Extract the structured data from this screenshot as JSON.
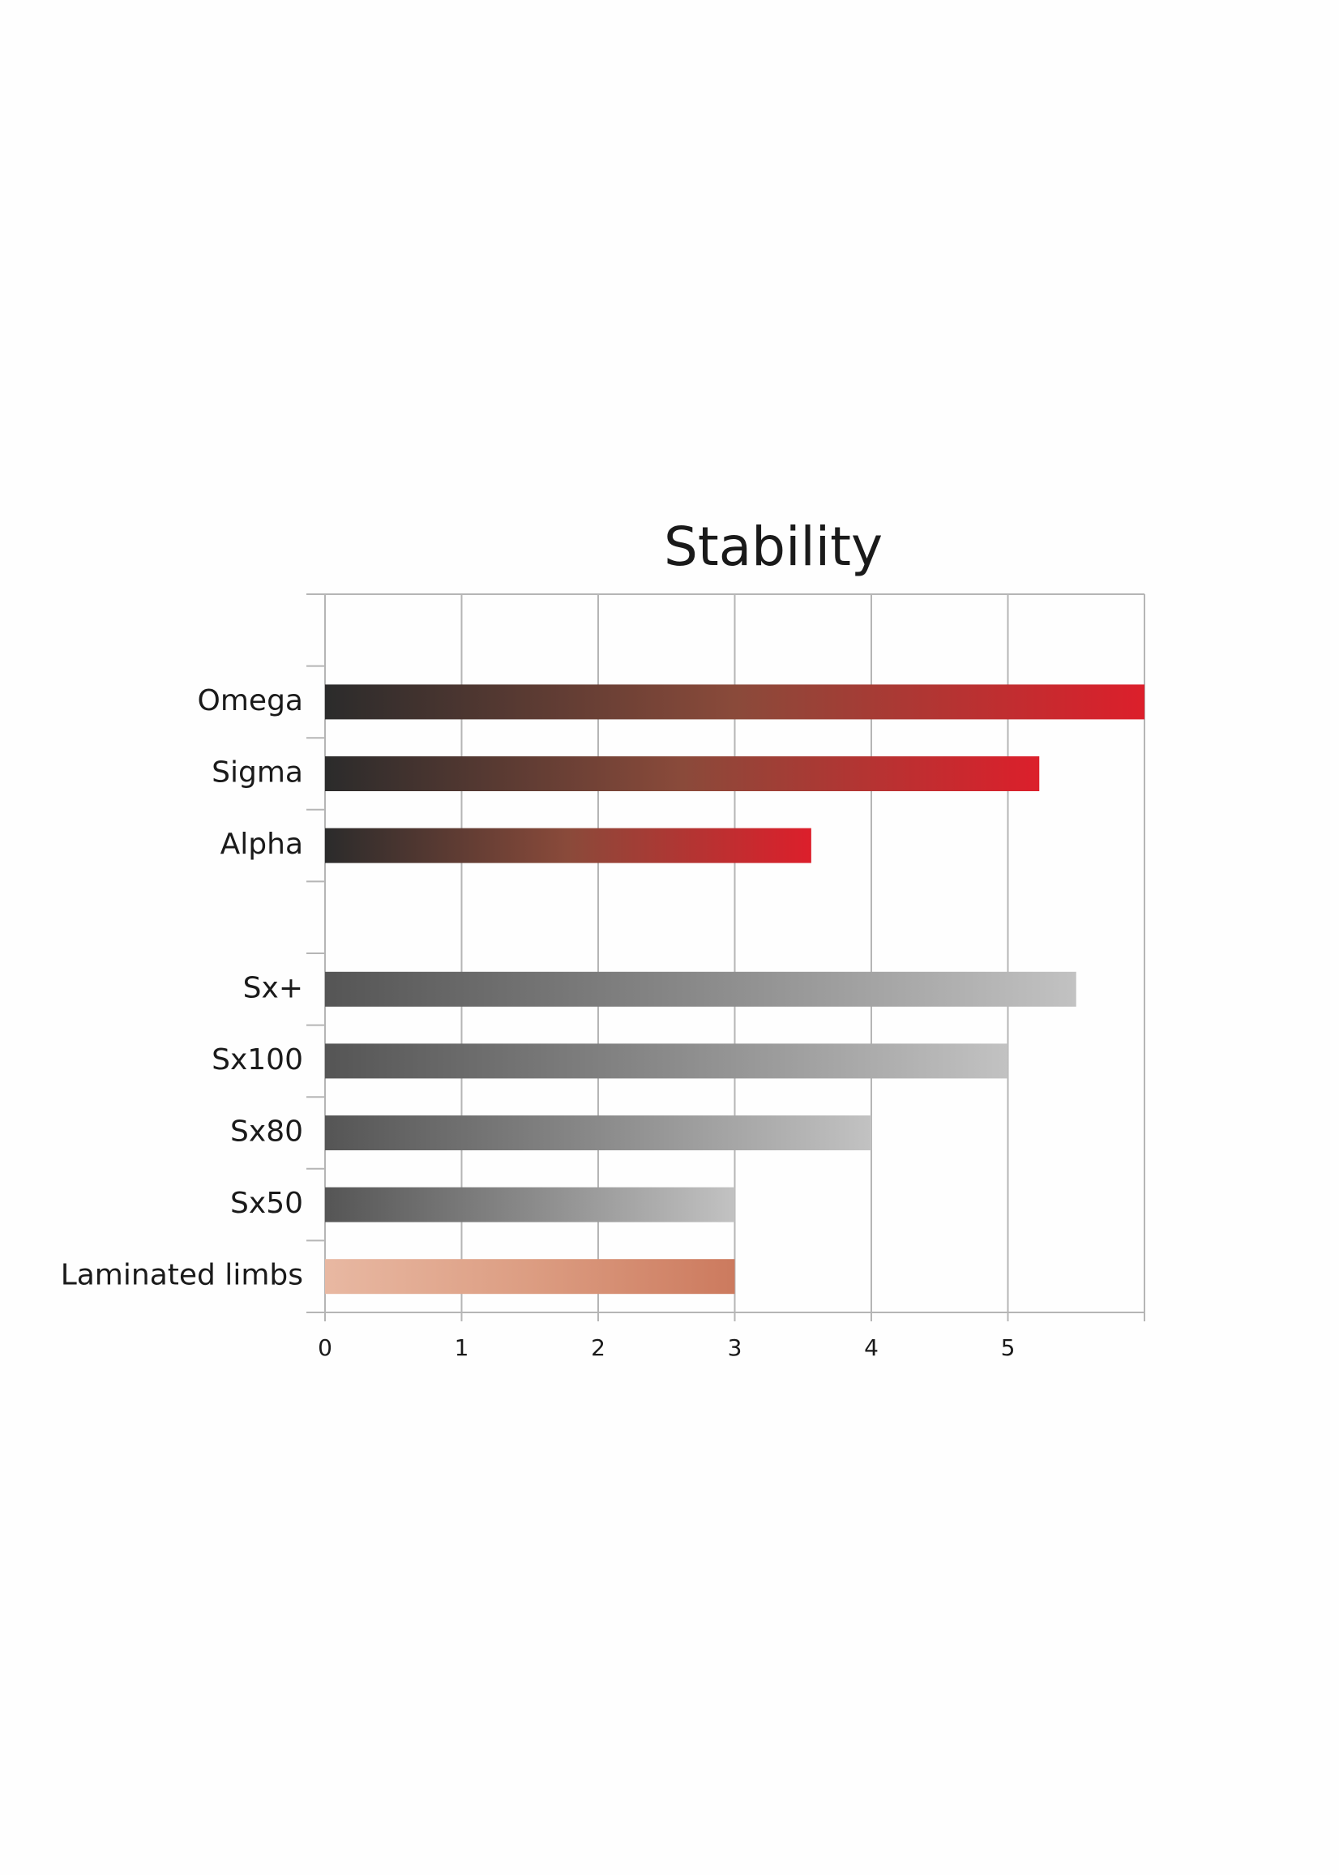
{
  "chart_data": {
    "type": "hbar",
    "title": "Stability",
    "categories": [
      null,
      "Omega",
      "Sigma",
      "Alpha",
      null,
      "Sx+",
      "Sx100",
      "Sx80",
      "Sx50",
      "Laminated limbs"
    ],
    "values": [
      null,
      6,
      5.23,
      3.56,
      null,
      5.5,
      5,
      4,
      3,
      3
    ],
    "colors": [
      null,
      [
        "#2b2b2b",
        "#8a4a3a",
        "#dc1f2b"
      ],
      [
        "#2b2b2b",
        "#8a4a3a",
        "#dc1f2b"
      ],
      [
        "#2b2b2b",
        "#8a4a3a",
        "#dc1f2b"
      ],
      null,
      [
        "#555555",
        "#8a8a8a",
        "#c2c2c2"
      ],
      [
        "#555555",
        "#8a8a8a",
        "#c2c2c2"
      ],
      [
        "#555555",
        "#8a8a8a",
        "#c2c2c2"
      ],
      [
        "#555555",
        "#8a8a8a",
        "#c2c2c2"
      ],
      [
        "#e8b8a2",
        "#dc9d82",
        "#cc7a5e"
      ]
    ],
    "xlim": [
      0,
      6
    ],
    "xticks": [
      0,
      1,
      2,
      3,
      4,
      5
    ],
    "grid": true
  }
}
